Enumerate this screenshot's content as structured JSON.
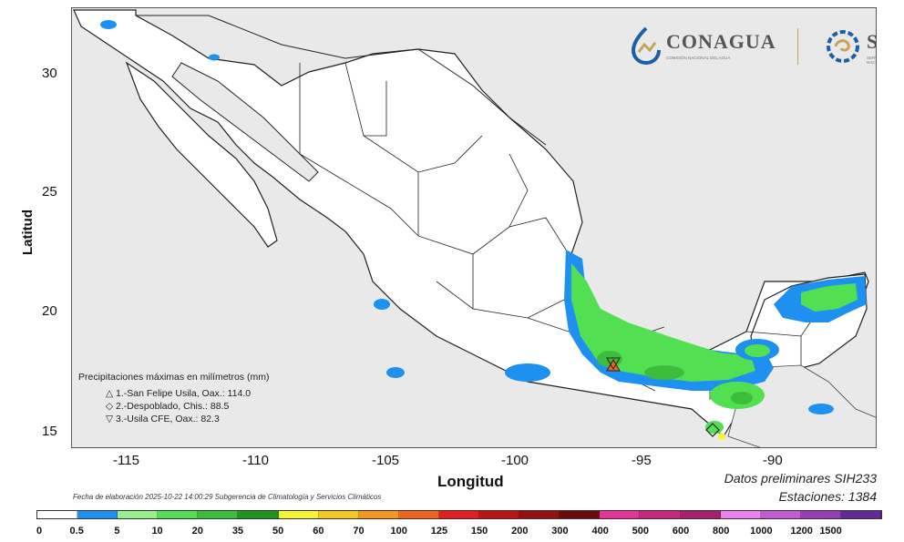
{
  "axes": {
    "xlabel": "Longitud",
    "ylabel": "Latitud",
    "xticks": [
      "-115",
      "-110",
      "-105",
      "-100",
      "-95",
      "-90"
    ],
    "yticks": [
      "30",
      "25",
      "20",
      "15"
    ],
    "xlim": [
      -117.2,
      -86.0
    ],
    "ylim": [
      14.0,
      32.7
    ]
  },
  "logos": {
    "conagua_name": "CONAGUA",
    "conagua_sub": "COMISIÓN NACIONAL DEL AGUA",
    "smn_name": "SMN",
    "smn_sub": "SERVICIO METEOROLÓGICO NACIONAL"
  },
  "legend": {
    "title": "Precipitaciones máximas en milímetros (mm)",
    "entries": [
      {
        "symbol": "triangle-up",
        "glyph": "△",
        "text": "1.-San Felipe Usila, Oax.: 114.0"
      },
      {
        "symbol": "diamond",
        "glyph": "◇",
        "text": "2.-Despoblado, Chis.: 88.5"
      },
      {
        "symbol": "triangle-down",
        "glyph": "▽",
        "text": "3.-Usila CFE, Oax.: 82.3"
      }
    ]
  },
  "footer": {
    "datos": "Datos preliminares SIH233",
    "estaciones": "Estaciones:  1384",
    "fecha": "Fecha de elaboración 2025-10-22 14:00:29 Subgerencia de Climatología y Servicios Climáticos"
  },
  "stations": [
    {
      "name": "San Felipe Usila",
      "lon": -96.52,
      "lat": 17.89,
      "value": 114.0,
      "marker": "triangle-up"
    },
    {
      "name": "Despoblado",
      "lon": -92.5,
      "lat": 15.6,
      "value": 88.5,
      "marker": "diamond"
    },
    {
      "name": "Usila CFE",
      "lon": -96.5,
      "lat": 17.93,
      "value": 82.3,
      "marker": "triangle-down"
    }
  ],
  "colorbar": {
    "ticks": [
      "0",
      "0.5",
      "5",
      "10",
      "20",
      "35",
      "50",
      "60",
      "70",
      "100",
      "125",
      "150",
      "200",
      "300",
      "400",
      "500",
      "600",
      "800",
      "1000",
      "1200",
      "1500"
    ],
    "colors": [
      "#ffffff",
      "#1e90f0",
      "#99f08c",
      "#52e052",
      "#3cbe3c",
      "#1e961e",
      "#f5f532",
      "#f5c820",
      "#f5961e",
      "#f0641e",
      "#e61e1e",
      "#be1414",
      "#961010",
      "#6e0a0a",
      "#e6329b",
      "#c8287d",
      "#aa1e6e",
      "#eb82f0",
      "#c35ad2",
      "#963cb4",
      "#64289b"
    ]
  },
  "colors": {
    "land": "#ffffff",
    "sea": "#e9e9e9",
    "rain_light": "#1e90f0",
    "rain_moderate": "#52e052",
    "rain_heavy": "#3cbe3c"
  }
}
